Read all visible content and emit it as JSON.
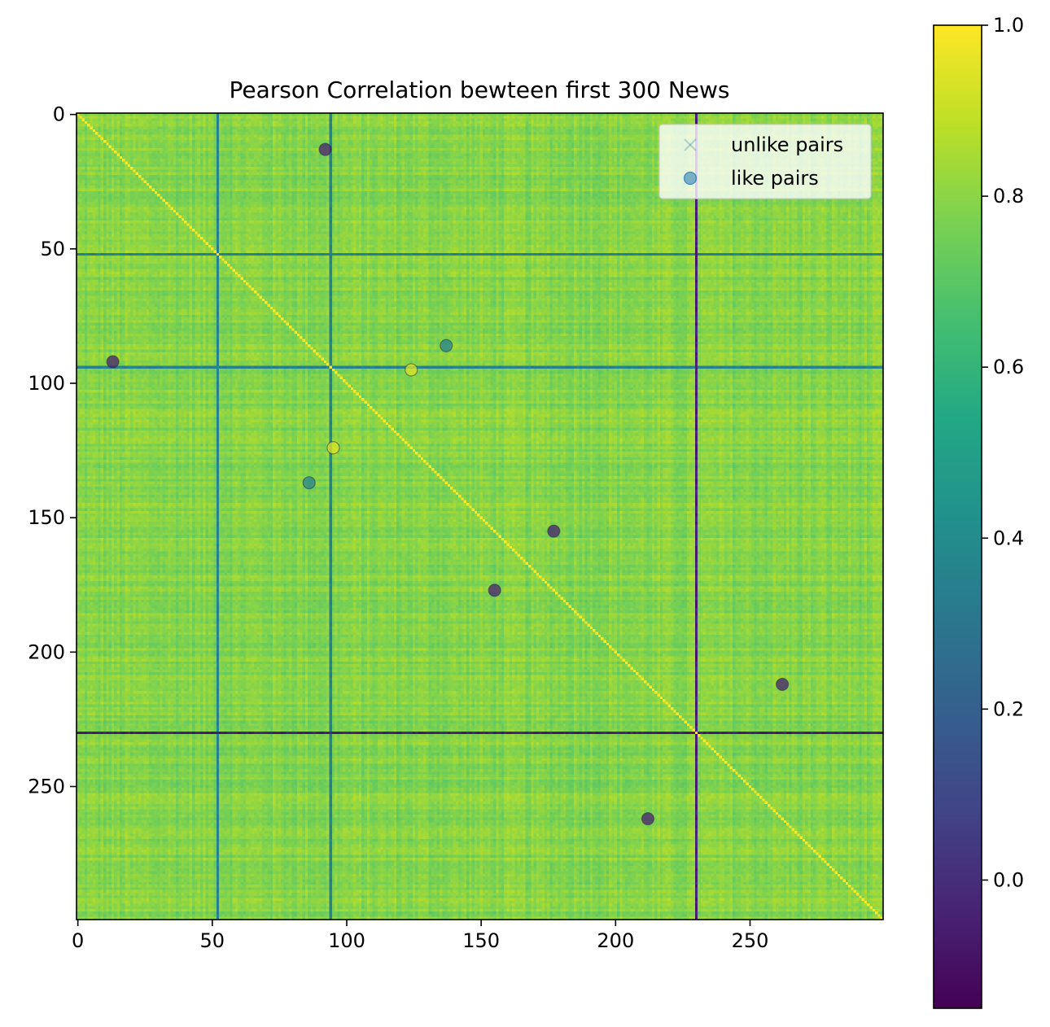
{
  "chart_data": {
    "type": "heatmap",
    "title": "Pearson Correlation bewteen first 300 News",
    "matrix_size": 300,
    "diagonal_value": 1.0,
    "background_value_range": [
      0.72,
      0.86
    ],
    "low_correlation_indices": [
      {
        "index": 52,
        "value": 0.35
      },
      {
        "index": 94,
        "value": 0.35
      },
      {
        "index": 230,
        "value": -0.05
      }
    ],
    "xlim": [
      0,
      300
    ],
    "ylim": [
      300,
      0
    ],
    "x_ticks": [
      0,
      50,
      100,
      150,
      200,
      250
    ],
    "y_ticks": [
      0,
      50,
      100,
      150,
      200,
      250
    ],
    "colorbar": {
      "colormap": "viridis",
      "range": [
        -0.15,
        1.0
      ],
      "ticks": [
        0.0,
        0.2,
        0.4,
        0.6,
        0.8,
        1.0
      ],
      "tick_labels": [
        "0.0",
        "0.2",
        "0.4",
        "0.6",
        "0.8",
        "1.0"
      ]
    },
    "series": [
      {
        "name": "unlike pairs",
        "marker": "x",
        "color": "#1f77b4",
        "points": []
      },
      {
        "name": "like pairs",
        "marker": "o",
        "color": "#1f77b4",
        "points": [
          {
            "x": 92,
            "y": 13,
            "value": -0.05
          },
          {
            "x": 13,
            "y": 92,
            "value": -0.05
          },
          {
            "x": 137,
            "y": 86,
            "value": 0.35
          },
          {
            "x": 86,
            "y": 137,
            "value": 0.35
          },
          {
            "x": 124,
            "y": 95,
            "value": 0.95
          },
          {
            "x": 95,
            "y": 124,
            "value": 0.95
          },
          {
            "x": 177,
            "y": 155,
            "value": -0.05
          },
          {
            "x": 155,
            "y": 177,
            "value": -0.05
          },
          {
            "x": 262,
            "y": 212,
            "value": -0.05
          },
          {
            "x": 212,
            "y": 262,
            "value": -0.05
          }
        ]
      }
    ],
    "legend": {
      "placement": "top-right",
      "entries": [
        "unlike pairs",
        "like pairs"
      ]
    }
  }
}
